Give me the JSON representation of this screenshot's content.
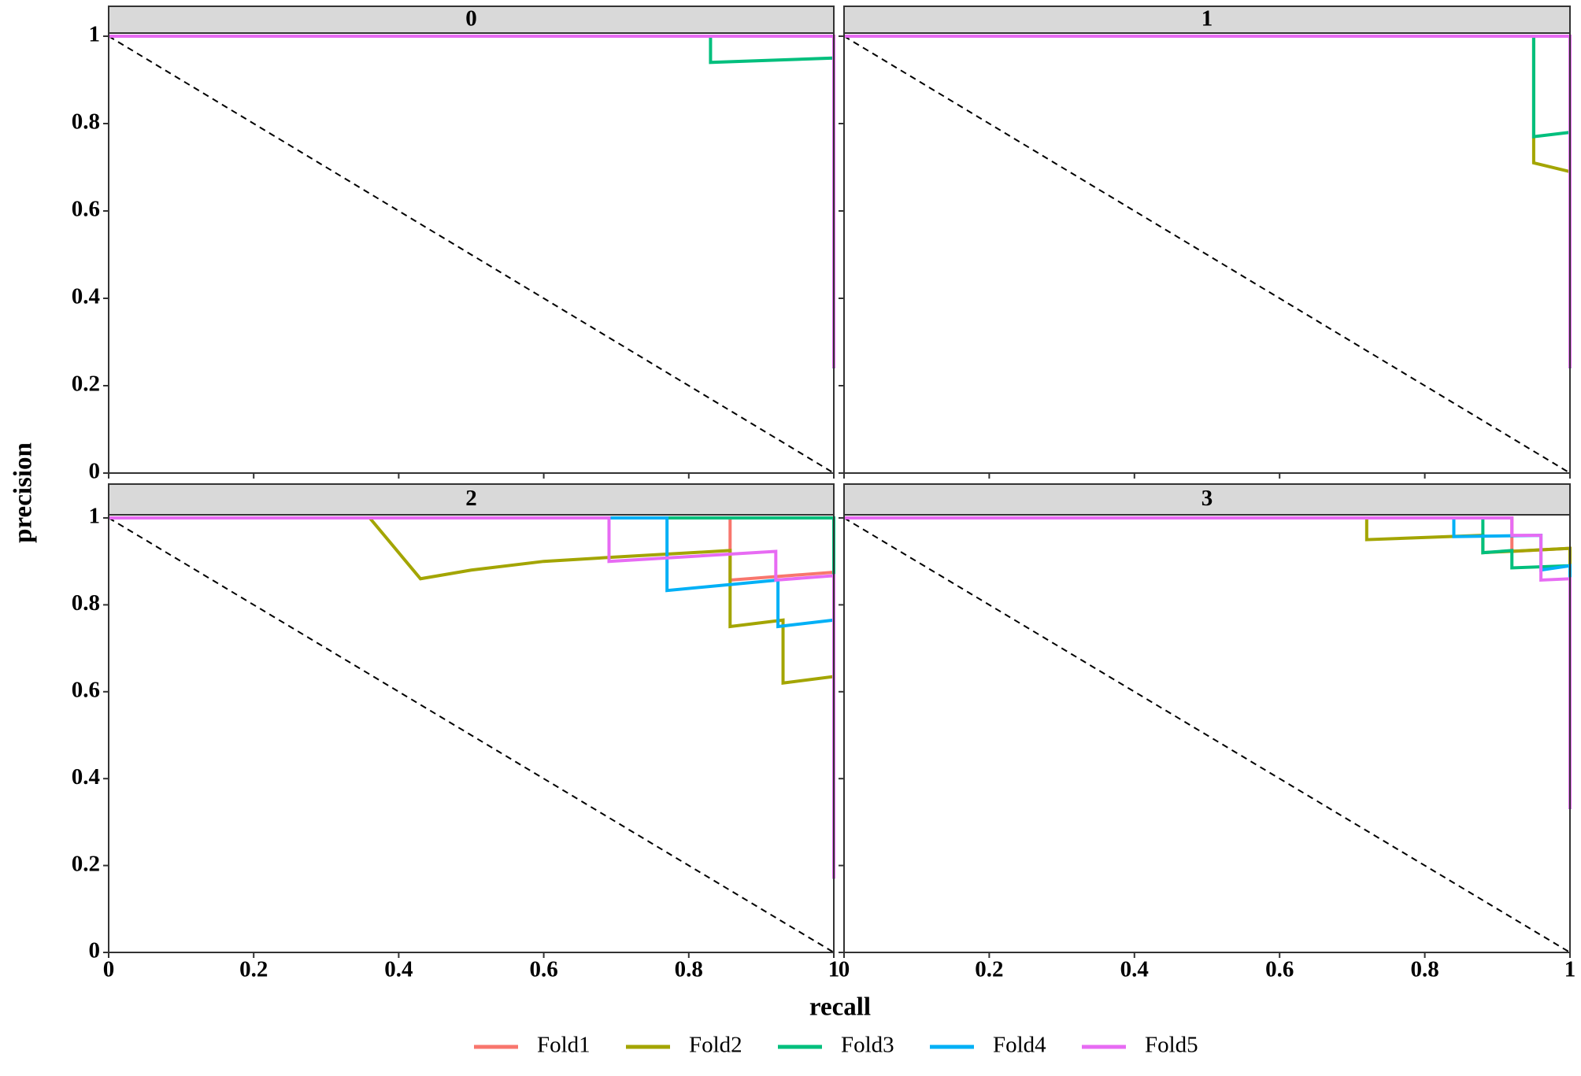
{
  "chart_data": {
    "type": "line",
    "xlabel": "recall",
    "ylabel": "precision",
    "legend": "bottom",
    "xlim": [
      0,
      1
    ],
    "ylim": [
      0,
      1
    ],
    "xticks": [
      0,
      0.2,
      0.4,
      0.6,
      0.8,
      1
    ],
    "yticks": [
      0,
      0.2,
      0.4,
      0.6,
      0.8,
      1
    ],
    "series": [
      {
        "name": "Fold1",
        "color": "#F8766D"
      },
      {
        "name": "Fold2",
        "color": "#A3A500"
      },
      {
        "name": "Fold3",
        "color": "#00BF7D"
      },
      {
        "name": "Fold4",
        "color": "#00B0F6"
      },
      {
        "name": "Fold5",
        "color": "#E76BF3"
      }
    ],
    "panels": [
      {
        "title": "0",
        "series": [
          {
            "x": [
              0,
              1,
              1
            ],
            "y": [
              1,
              1,
              0.24
            ]
          },
          {
            "x": [
              0,
              1,
              1
            ],
            "y": [
              1,
              1,
              0.24
            ]
          },
          {
            "x": [
              0,
              0.83,
              0.83,
              1,
              1
            ],
            "y": [
              1,
              1,
              0.94,
              0.95,
              0.24
            ]
          },
          {
            "x": [
              0,
              1,
              1
            ],
            "y": [
              1,
              1,
              0.24
            ]
          },
          {
            "x": [
              0,
              1,
              1
            ],
            "y": [
              1,
              1,
              0.24
            ]
          }
        ]
      },
      {
        "title": "1",
        "series": [
          {
            "x": [
              0,
              1,
              1
            ],
            "y": [
              1,
              1,
              0.24
            ]
          },
          {
            "x": [
              0,
              0.95,
              0.95,
              1,
              1
            ],
            "y": [
              1,
              1,
              0.71,
              0.69,
              0.24
            ]
          },
          {
            "x": [
              0,
              0.95,
              0.95,
              1,
              1
            ],
            "y": [
              1,
              1,
              0.77,
              0.78,
              0.24
            ]
          },
          {
            "x": [
              0,
              1,
              1
            ],
            "y": [
              1,
              1,
              0.24
            ]
          },
          {
            "x": [
              0,
              1,
              1
            ],
            "y": [
              1,
              1,
              0.24
            ]
          }
        ]
      },
      {
        "title": "2",
        "series": [
          {
            "x": [
              0,
              0.857,
              0.857,
              1,
              1
            ],
            "y": [
              1,
              1,
              0.857,
              0.875,
              0.17
            ]
          },
          {
            "x": [
              0,
              0.36,
              0.43,
              0.5,
              0.6,
              0.7,
              0.857,
              0.857,
              0.93,
              0.93,
              1,
              1
            ],
            "y": [
              1,
              1,
              0.86,
              0.88,
              0.9,
              0.91,
              0.925,
              0.75,
              0.765,
              0.62,
              0.635,
              0.17
            ]
          },
          {
            "x": [
              0,
              1,
              1
            ],
            "y": [
              1,
              1,
              0.17
            ]
          },
          {
            "x": [
              0,
              0.77,
              0.77,
              0.923,
              0.923,
              1,
              1
            ],
            "y": [
              1,
              1,
              0.833,
              0.857,
              0.75,
              0.765,
              0.17
            ]
          },
          {
            "x": [
              0,
              0.69,
              0.69,
              0.92,
              0.92,
              1,
              1
            ],
            "y": [
              1,
              1,
              0.9,
              0.923,
              0.857,
              0.867,
              0.17
            ]
          }
        ]
      },
      {
        "title": "3",
        "series": [
          {
            "x": [
              0,
              0.92,
              0.92,
              1,
              1
            ],
            "y": [
              1,
              1,
              0.923,
              0.93,
              0.33
            ]
          },
          {
            "x": [
              0,
              0.72,
              0.72,
              0.88,
              0.88,
              1,
              1
            ],
            "y": [
              1,
              1,
              0.95,
              0.96,
              0.92,
              0.93,
              0.33
            ]
          },
          {
            "x": [
              0,
              0.88,
              0.88,
              0.92,
              0.92,
              1,
              1
            ],
            "y": [
              1,
              1,
              0.92,
              0.925,
              0.885,
              0.89,
              0.33
            ]
          },
          {
            "x": [
              0,
              0.84,
              0.84,
              0.96,
              0.96,
              1,
              1
            ],
            "y": [
              1,
              1,
              0.957,
              0.96,
              0.88,
              0.89,
              0.33
            ]
          },
          {
            "x": [
              0,
              0.92,
              0.92,
              0.96,
              0.96,
              1,
              1
            ],
            "y": [
              1,
              1,
              0.96,
              0.96,
              0.857,
              0.86,
              0.33
            ]
          }
        ]
      }
    ]
  }
}
